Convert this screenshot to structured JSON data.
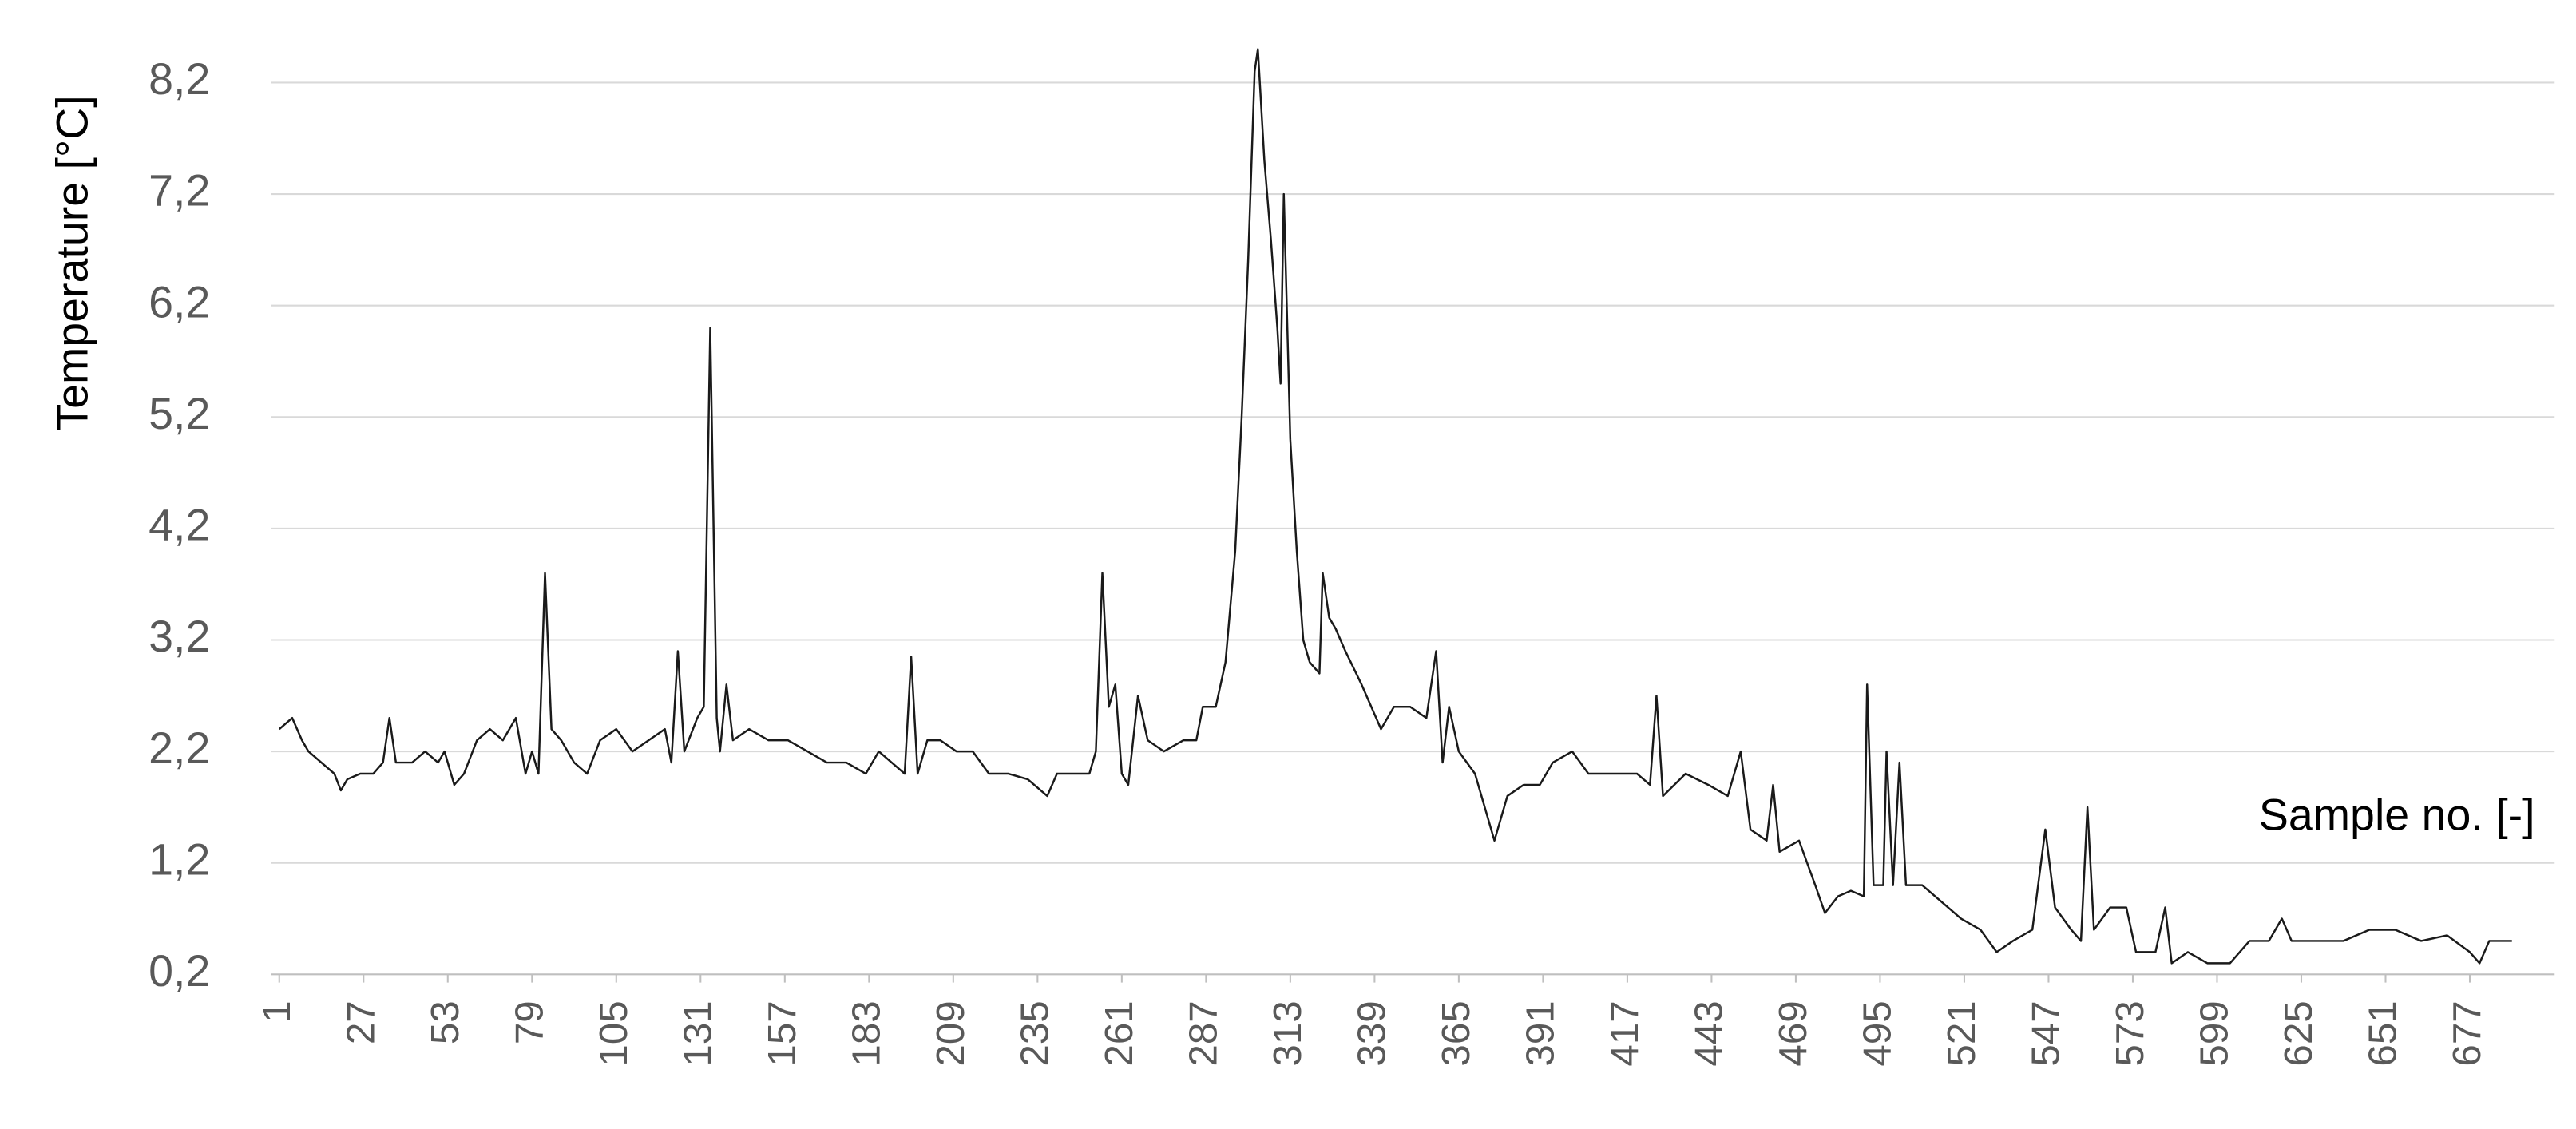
{
  "chart_data": {
    "type": "line",
    "y_label": "Temperature [°C]",
    "x_label": "Sample no. [-]",
    "xlim": [
      1,
      690
    ],
    "ylim": [
      0.2,
      8.6
    ],
    "xticks": [
      1,
      27,
      53,
      79,
      105,
      131,
      157,
      183,
      209,
      235,
      261,
      287,
      313,
      339,
      365,
      391,
      417,
      443,
      469,
      495,
      521,
      547,
      573,
      599,
      625,
      651,
      677
    ],
    "yticks": [
      {
        "value": 0.2,
        "label": "0,2"
      },
      {
        "value": 1.2,
        "label": "1,2"
      },
      {
        "value": 2.2,
        "label": "2,2"
      },
      {
        "value": 3.2,
        "label": "3,2"
      },
      {
        "value": 4.2,
        "label": "4,2"
      },
      {
        "value": 5.2,
        "label": "5,2"
      },
      {
        "value": 6.2,
        "label": "6,2"
      },
      {
        "value": 7.2,
        "label": "7,2"
      },
      {
        "value": 8.2,
        "label": "8,2"
      }
    ],
    "grid": true,
    "series": [
      {
        "color": "#1a1a1a",
        "x": [
          1,
          3,
          5,
          8,
          10,
          14,
          18,
          20,
          22,
          26,
          30,
          33,
          35,
          37,
          42,
          46,
          50,
          52,
          55,
          58,
          62,
          66,
          70,
          74,
          77,
          79,
          81,
          83,
          85,
          88,
          92,
          96,
          100,
          105,
          110,
          115,
          120,
          122,
          124,
          126,
          130,
          132,
          134,
          136,
          137,
          139,
          141,
          146,
          152,
          158,
          164,
          170,
          176,
          182,
          186,
          190,
          194,
          196,
          198,
          201,
          205,
          210,
          215,
          220,
          226,
          232,
          238,
          241,
          245,
          251,
          253,
          255,
          257,
          259,
          261,
          263,
          266,
          269,
          274,
          280,
          284,
          286,
          290,
          293,
          296,
          298,
          300,
          302,
          303,
          305,
          307,
          309,
          310,
          311,
          313,
          315,
          317,
          319,
          322,
          323,
          325,
          327,
          330,
          335,
          338,
          341,
          345,
          350,
          355,
          358,
          360,
          362,
          365,
          370,
          374,
          376,
          380,
          385,
          390,
          394,
          400,
          405,
          410,
          415,
          420,
          424,
          426,
          428,
          435,
          442,
          448,
          452,
          455,
          460,
          462,
          464,
          470,
          475,
          478,
          482,
          486,
          490,
          491,
          493,
          496,
          497,
          499,
          501,
          503,
          508,
          514,
          520,
          526,
          531,
          536,
          542,
          546,
          549,
          554,
          557,
          559,
          561,
          566,
          571,
          574,
          580,
          583,
          585,
          590,
          596,
          603,
          609,
          615,
          619,
          622,
          630,
          638,
          646,
          654,
          662,
          670,
          677,
          680,
          683,
          686,
          690
        ],
        "values": [
          2.4,
          2.45,
          2.5,
          2.3,
          2.2,
          2.1,
          2.0,
          1.85,
          1.95,
          2.0,
          2.0,
          2.1,
          2.5,
          2.1,
          2.1,
          2.2,
          2.1,
          2.2,
          1.9,
          2.0,
          2.3,
          2.4,
          2.3,
          2.5,
          2.0,
          2.2,
          2.0,
          3.8,
          2.4,
          2.3,
          2.1,
          2.0,
          2.3,
          2.4,
          2.2,
          2.3,
          2.4,
          2.1,
          3.1,
          2.2,
          2.5,
          2.6,
          6.0,
          2.5,
          2.2,
          2.8,
          2.3,
          2.4,
          2.3,
          2.3,
          2.2,
          2.1,
          2.1,
          2.0,
          2.2,
          2.1,
          2.0,
          3.05,
          2.0,
          2.3,
          2.3,
          2.2,
          2.2,
          2.0,
          2.0,
          1.95,
          1.8,
          2.0,
          2.0,
          2.0,
          2.2,
          3.8,
          2.6,
          2.8,
          2.0,
          1.9,
          2.7,
          2.3,
          2.2,
          2.3,
          2.3,
          2.6,
          2.6,
          3.0,
          4.0,
          5.2,
          6.6,
          8.3,
          8.5,
          7.5,
          6.8,
          6.0,
          5.5,
          7.2,
          5.0,
          4.0,
          3.2,
          3.0,
          2.9,
          3.8,
          3.4,
          3.3,
          3.1,
          2.8,
          2.6,
          2.4,
          2.6,
          2.6,
          2.5,
          3.1,
          2.1,
          2.6,
          2.2,
          2.0,
          1.6,
          1.4,
          1.8,
          1.9,
          1.9,
          2.1,
          2.2,
          2.0,
          2.0,
          2.0,
          2.0,
          1.9,
          2.7,
          1.8,
          2.0,
          1.9,
          1.8,
          2.2,
          1.5,
          1.4,
          1.9,
          1.3,
          1.4,
          1.0,
          0.75,
          0.9,
          0.95,
          0.9,
          2.8,
          1.0,
          1.0,
          2.2,
          1.0,
          2.1,
          1.0,
          1.0,
          0.85,
          0.7,
          0.6,
          0.4,
          0.5,
          0.6,
          1.5,
          0.8,
          0.6,
          0.5,
          1.7,
          0.6,
          0.8,
          0.8,
          0.4,
          0.4,
          0.8,
          0.3,
          0.4,
          0.3,
          0.3,
          0.5,
          0.5,
          0.7,
          0.5,
          0.5,
          0.5,
          0.6,
          0.6,
          0.5,
          0.55,
          0.4,
          0.3,
          0.5,
          0.5,
          0.5
        ]
      }
    ]
  }
}
